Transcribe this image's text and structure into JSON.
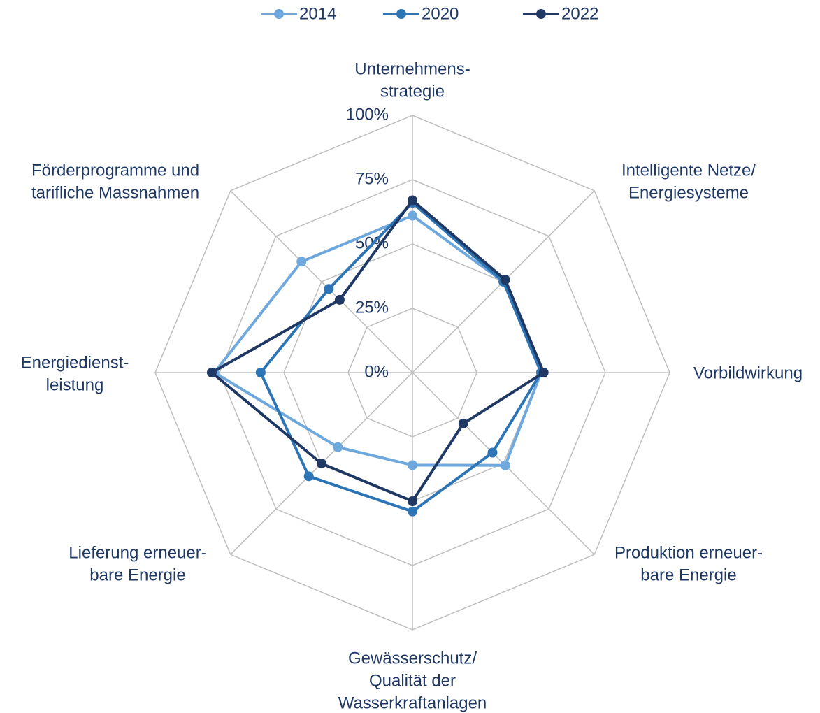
{
  "chart_data": {
    "type": "radar",
    "categories": [
      [
        "Unternehmens-",
        "strategie"
      ],
      [
        "Intelligente Netze/",
        "Energiesysteme"
      ],
      [
        "Vorbildwirkung"
      ],
      [
        "Produktion erneuer-",
        "bare Energie"
      ],
      [
        "Gewässerschutz/",
        "Qualität der",
        "Wasserkraftanlagen"
      ],
      [
        "Lieferung erneuer-",
        "bare Energie"
      ],
      [
        "Energiedienst-",
        "leistung"
      ],
      [
        "Förderprogramme und",
        "tarifliche Massnahmen"
      ]
    ],
    "series": [
      {
        "name": "2014",
        "color": "#6fa8dc",
        "values": [
          61,
          50,
          50,
          51,
          36,
          41,
          77,
          61
        ]
      },
      {
        "name": "2020",
        "color": "#2e75b6",
        "values": [
          66,
          50,
          50,
          44,
          54,
          57,
          59,
          46
        ]
      },
      {
        "name": "2022",
        "color": "#1f3864",
        "values": [
          67,
          51,
          51,
          28,
          50,
          50,
          78,
          40
        ]
      }
    ],
    "ylim": [
      0,
      100
    ],
    "yticks": [
      {
        "value": 0,
        "label": "0%"
      },
      {
        "value": 25,
        "label": "25%"
      },
      {
        "value": 50,
        "label": "50%"
      },
      {
        "value": 75,
        "label": "75%"
      },
      {
        "value": 100,
        "label": "100%"
      }
    ],
    "grid": true,
    "legend": "top"
  }
}
